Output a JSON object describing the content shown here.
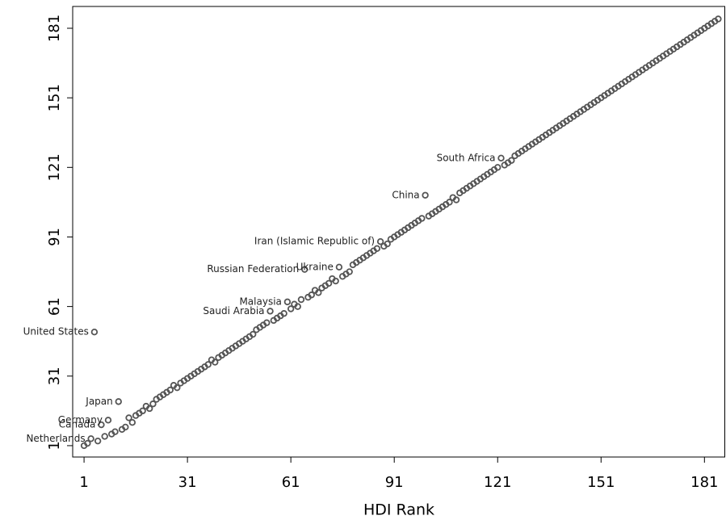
{
  "chart_data": {
    "type": "scatter",
    "xlabel": "HDI Rank",
    "x": [
      1,
      2,
      3,
      4,
      5,
      6,
      7,
      8,
      9,
      10,
      11,
      12,
      13,
      14,
      15,
      16,
      17,
      18,
      19,
      20,
      21,
      22,
      23,
      24,
      25,
      26,
      27,
      28,
      29,
      30,
      31,
      32,
      33,
      34,
      35,
      36,
      37,
      38,
      39,
      40,
      41,
      42,
      43,
      44,
      45,
      46,
      47,
      48,
      49,
      50,
      51,
      52,
      53,
      54,
      55,
      56,
      57,
      58,
      59,
      60,
      61,
      62,
      63,
      64,
      65,
      66,
      67,
      68,
      69,
      70,
      71,
      72,
      73,
      74,
      75,
      76,
      77,
      78,
      79,
      80,
      81,
      82,
      83,
      84,
      85,
      86,
      87,
      88,
      89,
      90,
      91,
      92,
      93,
      94,
      95,
      96,
      97,
      98,
      99,
      100,
      101,
      102,
      103,
      104,
      105,
      106,
      107,
      108,
      109,
      110,
      111,
      112,
      113,
      114,
      115,
      116,
      117,
      118,
      119,
      120,
      121,
      122,
      123,
      124,
      125,
      126,
      127,
      128,
      129,
      130,
      131,
      132,
      133,
      134,
      135,
      136,
      137,
      138,
      139,
      140,
      141,
      142,
      143,
      144,
      145,
      146,
      147,
      148,
      149,
      150,
      151,
      152,
      153,
      154,
      155,
      156,
      157,
      158,
      159,
      160,
      161,
      162,
      163,
      164,
      165,
      166,
      167,
      168,
      169,
      170,
      171,
      172,
      173,
      174,
      175,
      176,
      177,
      178,
      179,
      180,
      181,
      182,
      183,
      184,
      185
    ],
    "values": [
      1,
      2,
      4,
      50,
      3,
      10,
      5,
      12,
      6,
      7,
      20,
      8,
      9,
      13,
      11,
      14,
      15,
      16,
      18,
      17,
      19,
      21,
      22,
      23,
      24,
      25,
      27,
      26,
      28,
      29,
      30,
      31,
      32,
      33,
      34,
      35,
      36,
      38,
      37,
      39,
      40,
      41,
      42,
      43,
      44,
      45,
      46,
      47,
      48,
      49,
      51,
      52,
      53,
      54,
      59,
      55,
      56,
      57,
      58,
      63,
      60,
      62,
      61,
      64,
      77,
      65,
      66,
      68,
      67,
      69,
      70,
      71,
      73,
      72,
      78,
      74,
      75,
      76,
      79,
      80,
      81,
      82,
      83,
      84,
      85,
      86,
      89,
      87,
      88,
      90,
      91,
      92,
      93,
      94,
      95,
      96,
      97,
      98,
      99,
      109,
      100,
      101,
      102,
      103,
      104,
      105,
      106,
      108,
      107,
      110,
      111,
      112,
      113,
      114,
      115,
      116,
      117,
      118,
      119,
      120,
      121,
      125,
      122,
      123,
      124,
      126,
      127,
      128,
      129,
      130,
      131,
      132,
      133,
      134,
      135,
      136,
      137,
      138,
      139,
      140,
      141,
      142,
      143,
      144,
      145,
      146,
      147,
      148,
      149,
      150,
      151,
      152,
      153,
      154,
      155,
      156,
      157,
      158,
      159,
      160,
      161,
      162,
      163,
      164,
      165,
      166,
      167,
      168,
      169,
      170,
      171,
      172,
      173,
      174,
      175,
      176,
      177,
      178,
      179,
      180,
      181,
      182,
      183,
      184,
      185
    ],
    "color": "#555555",
    "annotations": [
      {
        "text": "Netherlands",
        "x": 3,
        "y": 4
      },
      {
        "text": "United States",
        "x": 4,
        "y": 50
      },
      {
        "text": "Canada",
        "x": 6,
        "y": 10
      },
      {
        "text": "Germany",
        "x": 8,
        "y": 12
      },
      {
        "text": "Japan",
        "x": 11,
        "y": 20
      },
      {
        "text": "Saudi Arabia",
        "x": 55,
        "y": 59
      },
      {
        "text": "Malaysia",
        "x": 60,
        "y": 63
      },
      {
        "text": "Russian Federation",
        "x": 65,
        "y": 77
      },
      {
        "text": "Ukraine",
        "x": 75,
        "y": 78
      },
      {
        "text": "Iran (Islamic Republic of)",
        "x": 87,
        "y": 89
      },
      {
        "text": "China",
        "x": 100,
        "y": 109
      },
      {
        "text": "South Africa",
        "x": 122,
        "y": 125
      }
    ],
    "xlim": [
      -2.3,
      186.9
    ],
    "ylim": [
      -3.9,
      190.4
    ],
    "xticks": [
      1,
      31,
      61,
      91,
      121,
      151,
      181
    ],
    "yticks": [
      1,
      31,
      61,
      91,
      121,
      151,
      181
    ],
    "grid": false
  }
}
